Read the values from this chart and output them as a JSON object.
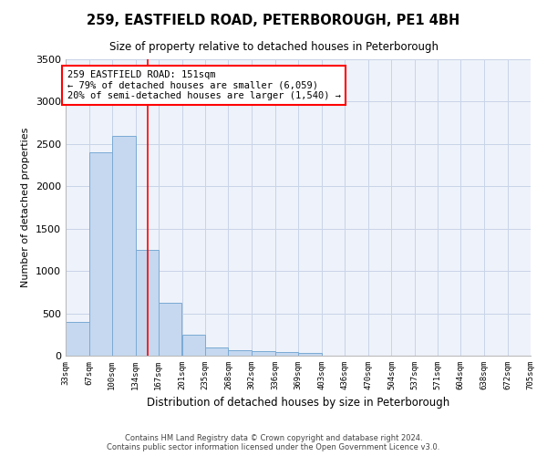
{
  "title": "259, EASTFIELD ROAD, PETERBOROUGH, PE1 4BH",
  "subtitle": "Size of property relative to detached houses in Peterborough",
  "xlabel": "Distribution of detached houses by size in Peterborough",
  "ylabel": "Number of detached properties",
  "footer_line1": "Contains HM Land Registry data © Crown copyright and database right 2024.",
  "footer_line2": "Contains public sector information licensed under the Open Government Licence v3.0.",
  "bar_color": "#c5d8f0",
  "bar_edgecolor": "#7aaad4",
  "grid_color": "#c8d4e8",
  "annotation_text": "259 EASTFIELD ROAD: 151sqm\n← 79% of detached houses are smaller (6,059)\n20% of semi-detached houses are larger (1,540) →",
  "annotation_box_edgecolor": "red",
  "vline_color": "red",
  "vline_x": 151,
  "bin_edges": [
    33,
    67,
    100,
    134,
    167,
    201,
    235,
    268,
    302,
    336,
    369,
    403,
    436,
    470,
    504,
    537,
    571,
    604,
    638,
    672,
    705
  ],
  "bar_heights": [
    400,
    2400,
    2600,
    1250,
    630,
    250,
    100,
    60,
    50,
    40,
    30,
    0,
    0,
    0,
    0,
    0,
    0,
    0,
    0,
    0
  ],
  "ylim": [
    0,
    3500
  ],
  "yticks": [
    0,
    500,
    1000,
    1500,
    2000,
    2500,
    3000,
    3500
  ],
  "xlim_left": 33,
  "xlim_right": 705,
  "background_color": "#eef2fa",
  "fig_width": 6.0,
  "fig_height": 5.0,
  "dpi": 100
}
